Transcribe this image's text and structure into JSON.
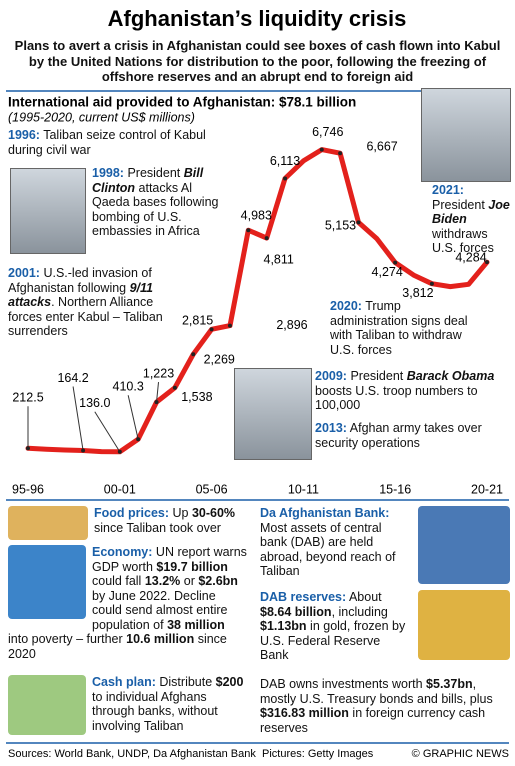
{
  "header": {
    "title": "Afghanistan’s liquidity crisis",
    "subtitle": "Plans to avert a crisis in Afghanistan could see boxes of cash flown into Kabul by the United Nations for distribution to the poor, following the freezing of offshore reserves and an abrupt end to foreign aid"
  },
  "chart_data": {
    "type": "line",
    "title": "International aid provided to Afghanistan: $78.1 billion",
    "subtitle": "(1995-2020, current US$ millions)",
    "categories": [
      "95-96",
      null,
      null,
      null,
      null,
      "00-01",
      null,
      null,
      null,
      null,
      "05-06",
      null,
      null,
      null,
      null,
      "10-11",
      null,
      null,
      null,
      null,
      "15-16",
      null,
      null,
      null,
      null,
      "20-21"
    ],
    "values": [
      212.5,
      190,
      175,
      164.2,
      140,
      136.0,
      410.3,
      1223,
      1538,
      2269,
      2815,
      2896,
      4983,
      4811,
      6113,
      6500,
      6746,
      6667,
      5153,
      4800,
      4274,
      4000,
      3812,
      3750,
      3800,
      4284
    ],
    "value_labels": [
      "212.5",
      null,
      null,
      "164.2",
      null,
      "136.0",
      "410.3",
      "1,223",
      "1,538",
      "2,269",
      "2,815",
      "2,896",
      "4,983",
      "4,811",
      "6,113",
      null,
      "6,746",
      "6,667",
      "5,153",
      null,
      "4,274",
      null,
      "3,812",
      null,
      null,
      "4,284"
    ],
    "color": "#e3211c",
    "ylim": [
      0,
      7000
    ],
    "annotations": [
      {
        "lead": "1996:",
        "parts": [
          {
            "text": " Taliban seize control of Kabul during civil war"
          }
        ]
      },
      {
        "lead": "1998:",
        "parts": [
          {
            "text": " President "
          },
          {
            "text": "Bill Clinton",
            "em": true
          },
          {
            "text": " attacks Al Qaeda bases following bombing of U.S. embassies in Africa"
          }
        ]
      },
      {
        "lead": "2001:",
        "parts": [
          {
            "text": " U.S.-led invasion of Afghanistan following "
          },
          {
            "text": "9/11 attacks",
            "em": true
          },
          {
            "text": ". Northern Alliance forces enter Kabul – Taliban surrenders"
          }
        ]
      },
      {
        "lead": "2021:",
        "parts": [
          {
            "text": " President "
          },
          {
            "text": "Joe Biden",
            "em": true
          },
          {
            "text": " withdraws U.S. forces"
          }
        ]
      },
      {
        "lead": "2020:",
        "parts": [
          {
            "text": " Trump administration signs deal with Taliban to withdraw U.S. forces"
          }
        ]
      },
      {
        "lead": "2009:",
        "parts": [
          {
            "text": " President "
          },
          {
            "text": "Barack Obama",
            "em": true
          },
          {
            "text": " boosts U.S. troop numbers to 100,000"
          }
        ]
      },
      {
        "lead": "2013:",
        "parts": [
          {
            "text": " Afghan army takes over security operations"
          }
        ]
      }
    ]
  },
  "panels": [
    {
      "lead": "Food prices:",
      "parts": [
        {
          "text": " Up "
        },
        {
          "text": "30-60%",
          "b": true
        },
        {
          "text": " since Taliban took over"
        }
      ]
    },
    {
      "lead": "Economy:",
      "parts": [
        {
          "text": " UN report warns GDP worth "
        },
        {
          "text": "$19.7 billion",
          "b": true
        },
        {
          "text": " could fall "
        },
        {
          "text": "13.2%",
          "b": true
        },
        {
          "text": " or "
        },
        {
          "text": "$2.6bn",
          "b": true
        },
        {
          "text": " by June 2022. Decline could send almost entire population of "
        },
        {
          "text": "38 million",
          "b": true
        },
        {
          "text": " into poverty – further "
        },
        {
          "text": "10.6 million",
          "b": true
        },
        {
          "text": " since 2020"
        }
      ]
    },
    {
      "lead": "Cash plan:",
      "parts": [
        {
          "text": " Distribute "
        },
        {
          "text": "$200",
          "b": true
        },
        {
          "text": " to individual Afghans through banks, without involving Taliban"
        }
      ]
    },
    {
      "lead": "Da Afghanistan Bank:",
      "parts": [
        {
          "text": " Most assets of central bank (DAB) are held abroad, beyond reach of Taliban"
        }
      ]
    },
    {
      "lead": "DAB reserves:",
      "parts": [
        {
          "text": " About "
        },
        {
          "text": "$8.64 billion",
          "b": true
        },
        {
          "text": ", including "
        },
        {
          "text": "$1.13bn",
          "b": true
        },
        {
          "text": " in gold, frozen by U.S. Federal Reserve Bank"
        }
      ]
    },
    {
      "parts": [
        {
          "text": "DAB owns investments worth "
        },
        {
          "text": "$5.37bn",
          "b": true
        },
        {
          "text": ", mostly U.S. Treasury bonds and bills, plus "
        },
        {
          "text": "$316.83 million",
          "b": true
        },
        {
          "text": " in foreign currency cash reserves"
        }
      ]
    }
  ],
  "footer": {
    "sources": "Sources: World Bank, UNDP, Da Afghanistan Bank",
    "pictures": "Pictures: Getty Images",
    "credit": "© GRAPHIC NEWS"
  }
}
